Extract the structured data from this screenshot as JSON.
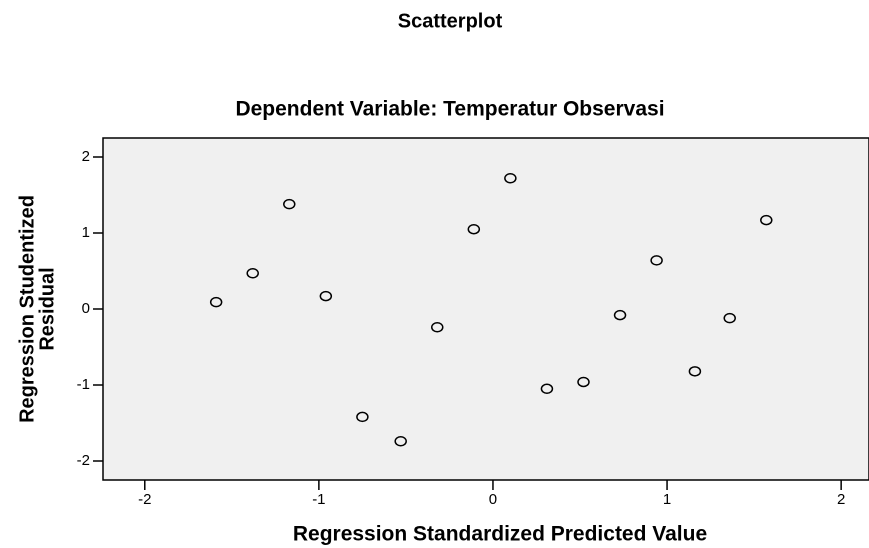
{
  "chart_data": {
    "type": "scatter",
    "title": "Scatterplot",
    "subtitle": "Dependent Variable: Temperatur Observasi",
    "xlabel": "Regression Standardized Predicted Value",
    "ylabel_lines": [
      "Regression Studentized",
      "Residual"
    ],
    "x": [
      -1.59,
      -1.38,
      -1.17,
      -0.96,
      -0.75,
      -0.53,
      -0.32,
      -0.11,
      0.1,
      0.31,
      0.52,
      0.73,
      0.94,
      1.16,
      1.36,
      1.57
    ],
    "values": [
      0.09,
      0.47,
      1.38,
      0.17,
      -1.42,
      -1.74,
      -0.24,
      1.05,
      1.72,
      -1.05,
      -0.96,
      -0.08,
      0.64,
      -0.82,
      -0.12,
      1.17
    ],
    "color": "#000000",
    "xlim": [
      -2.24,
      2.16
    ],
    "ylim": [
      -2.25,
      2.25
    ],
    "xticks": [
      -2,
      -1,
      0,
      1,
      2
    ],
    "yticks": [
      -2,
      -1,
      0,
      1,
      2
    ]
  }
}
